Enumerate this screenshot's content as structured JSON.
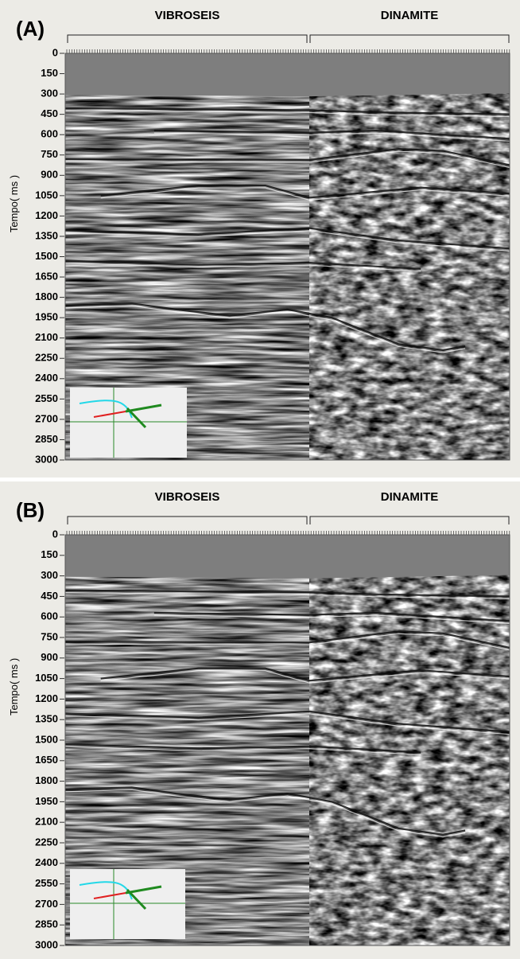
{
  "panels": [
    {
      "label": "(A)",
      "headers": [
        "VIBROSEIS",
        "DINAMITE"
      ],
      "y_axis_label": "Tempo( ms )",
      "yticks": [
        0,
        150,
        300,
        450,
        600,
        750,
        900,
        1050,
        1200,
        1350,
        1500,
        1650,
        1800,
        1950,
        2100,
        2250,
        2400,
        2550,
        2700,
        2850,
        3000
      ]
    },
    {
      "label": "(B)",
      "headers": [
        "VIBROSEIS",
        "DINAMITE"
      ],
      "y_axis_label": "Tempo( ms )",
      "yticks": [
        0,
        150,
        300,
        450,
        600,
        750,
        900,
        1050,
        1200,
        1350,
        1500,
        1650,
        1800,
        1950,
        2100,
        2250,
        2400,
        2550,
        2700,
        2850,
        3000
      ]
    }
  ]
}
